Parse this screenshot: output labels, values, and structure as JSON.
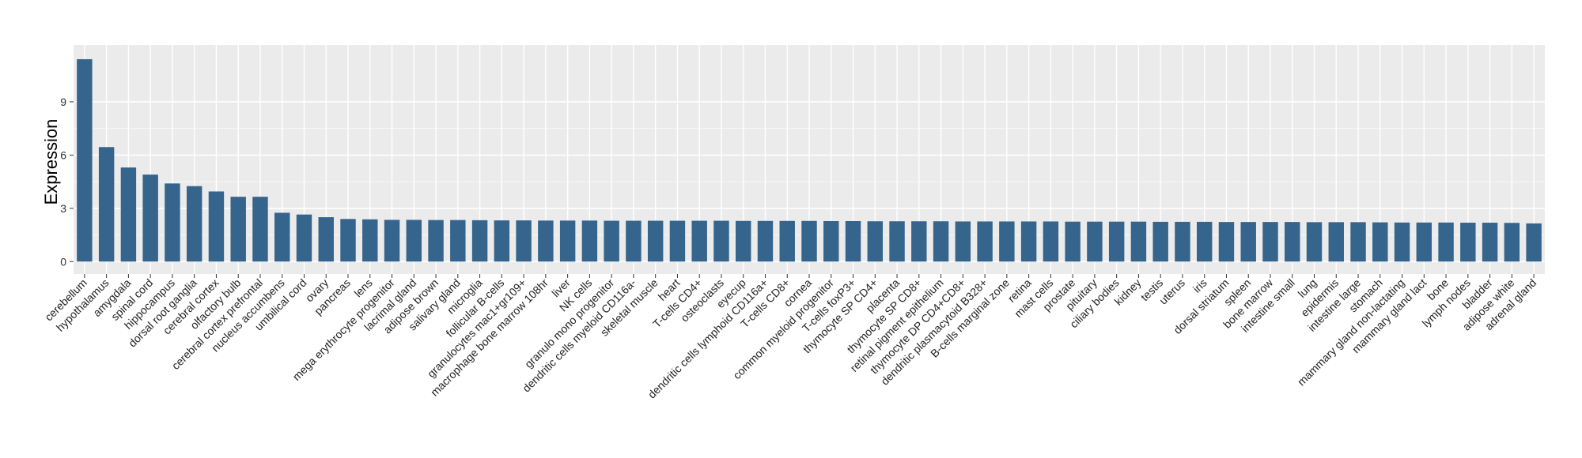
{
  "chart_data": {
    "type": "bar",
    "title": "",
    "xlabel": "",
    "ylabel": "Expression",
    "ylim": [
      -0.7,
      12.2
    ],
    "yticks": [
      0,
      3,
      6,
      9
    ],
    "grid": true,
    "legend": "none",
    "colors": {
      "bar": "#35648c",
      "panel": "#ebebeb",
      "grid": "#ffffff"
    },
    "categories": [
      "cerebellum",
      "hypothalamus",
      "amygdala",
      "spinal cord",
      "hippocampus",
      "dorsal root ganglia",
      "cerebral cortex",
      "olfactory bulb",
      "cerebral cortex prefrontal",
      "nucleus accumbens",
      "umbilical cord",
      "ovary",
      "pancreas",
      "lens",
      "mega erythrocyte progenitor",
      "lacrimal gland",
      "adipose brown",
      "salivary gland",
      "microglia",
      "follicular B-cells",
      "granulocytes mac1+gr109+",
      "macrophage bone marrow 108hr",
      "liver",
      "NK cells",
      "granulo mono progenitor",
      "dendritic cells myeloid CD116a-",
      "skeletal muscle",
      "heart",
      "T-cells CD4+",
      "osteoclasts",
      "eyecup",
      "dendritic cells lymphoid CD116a+",
      "T-cells CD8+",
      "cornea",
      "common myeloid progenitor",
      "T-cells foxP3+",
      "thymocyte SP CD4+",
      "placenta",
      "thymocyte SP CD8+",
      "retinal pigment epithelium",
      "thymocyte DP CD4+CD8+",
      "dendritic plasmacytoid B328+",
      "B-cells marginal zone",
      "retina",
      "mast cells",
      "prostate",
      "pituitary",
      "ciliary bodies",
      "kidney",
      "testis",
      "uterus",
      "iris",
      "dorsal striatum",
      "spleen",
      "bone marrow",
      "intestine small",
      "lung",
      "epidermis",
      "intestine large",
      "stomach",
      "mammary gland non-lactating",
      "mammary gland  lact",
      "bone",
      "lymph nodes",
      "bladder",
      "adipose white",
      "adrenal gland"
    ],
    "values": [
      11.4,
      6.45,
      5.3,
      4.9,
      4.4,
      4.25,
      3.95,
      3.65,
      3.65,
      2.75,
      2.65,
      2.5,
      2.4,
      2.38,
      2.35,
      2.35,
      2.34,
      2.34,
      2.33,
      2.32,
      2.32,
      2.31,
      2.31,
      2.31,
      2.3,
      2.3,
      2.3,
      2.3,
      2.3,
      2.3,
      2.29,
      2.29,
      2.29,
      2.29,
      2.28,
      2.28,
      2.27,
      2.27,
      2.27,
      2.27,
      2.26,
      2.26,
      2.26,
      2.26,
      2.26,
      2.25,
      2.25,
      2.25,
      2.25,
      2.24,
      2.24,
      2.24,
      2.23,
      2.23,
      2.23,
      2.23,
      2.22,
      2.22,
      2.22,
      2.21,
      2.2,
      2.2,
      2.2,
      2.19,
      2.19,
      2.18,
      2.15
    ]
  }
}
